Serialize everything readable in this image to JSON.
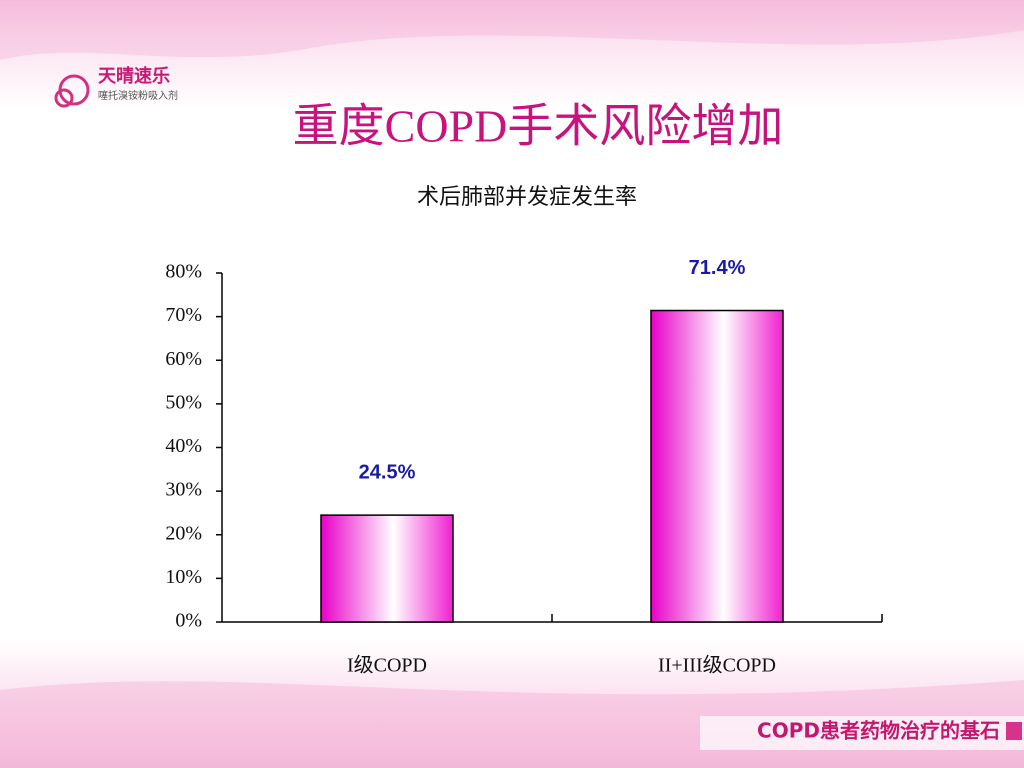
{
  "chart_data": {
    "type": "bar",
    "title": "重度COPD手术风险增加",
    "subtitle": "术后肺部并发症发生率",
    "categories": [
      "I级COPD",
      "II+III级COPD"
    ],
    "values": [
      24.5,
      71.4
    ],
    "value_labels": [
      "24.5%",
      "71.4%"
    ],
    "color": "#e800c8",
    "label_color": "#1a1aa8",
    "ylim": [
      0,
      80
    ],
    "yticks": [
      {
        "value": 0,
        "label": "0%"
      },
      {
        "value": 10,
        "label": "10%"
      },
      {
        "value": 20,
        "label": "20%"
      },
      {
        "value": 30,
        "label": "30%"
      },
      {
        "value": 40,
        "label": "40%"
      },
      {
        "value": 50,
        "label": "50%"
      },
      {
        "value": 60,
        "label": "60%"
      },
      {
        "value": 70,
        "label": "70%"
      },
      {
        "value": 80,
        "label": "80%"
      }
    ],
    "grid": false
  },
  "logo": {
    "name": "天晴速乐",
    "subtitle": "噻托溴铵粉吸入剂"
  },
  "footer": "COPD患者药物治疗的基石"
}
